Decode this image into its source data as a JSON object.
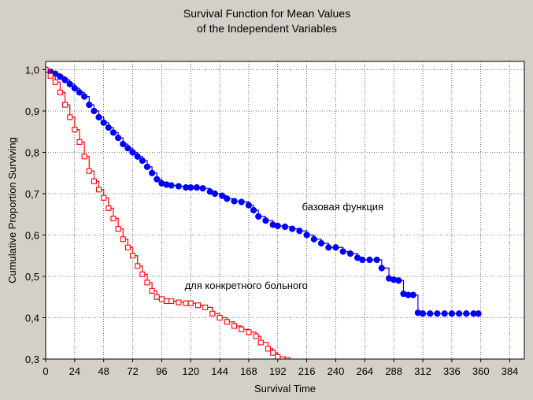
{
  "chart_data": {
    "type": "line",
    "title_lines": [
      "Survival Function for Mean Values",
      "of the Independent Variables"
    ],
    "xlabel": "Survival Time",
    "ylabel": "Cumulative Proportion Surviving",
    "xlim": [
      0,
      396
    ],
    "ylim": [
      0.3,
      1.02
    ],
    "x_ticks": [
      0,
      24,
      48,
      72,
      96,
      120,
      144,
      168,
      192,
      216,
      240,
      264,
      288,
      312,
      336,
      360,
      384
    ],
    "y_ticks": [
      {
        "v": 0.3,
        "label": "0,3"
      },
      {
        "v": 0.4,
        "label": "0,4"
      },
      {
        "v": 0.5,
        "label": "0,5"
      },
      {
        "v": 0.6,
        "label": "0,6"
      },
      {
        "v": 0.7,
        "label": "0,7"
      },
      {
        "v": 0.8,
        "label": "0,8"
      },
      {
        "v": 0.9,
        "label": "0,9"
      },
      {
        "v": 1.0,
        "label": "1,0"
      }
    ],
    "grid": true,
    "series": [
      {
        "name": "базовая функция",
        "color": "#0000ff",
        "marker": "filled-circle",
        "x": [
          0,
          4,
          8,
          12,
          16,
          20,
          24,
          28,
          32,
          36,
          40,
          44,
          48,
          52,
          56,
          60,
          64,
          68,
          72,
          76,
          80,
          84,
          88,
          92,
          96,
          100,
          104,
          110,
          116,
          120,
          125,
          130,
          136,
          140,
          146,
          150,
          156,
          162,
          168,
          172,
          176,
          182,
          188,
          192,
          198,
          204,
          210,
          216,
          222,
          228,
          234,
          240,
          246,
          252,
          258,
          262,
          268,
          274,
          278,
          284,
          288,
          292,
          296,
          300,
          304,
          308,
          312,
          318,
          324,
          330,
          336,
          342,
          348,
          354,
          358
        ],
        "y": [
          1.0,
          0.995,
          0.99,
          0.983,
          0.975,
          0.965,
          0.955,
          0.945,
          0.935,
          0.915,
          0.9,
          0.885,
          0.872,
          0.86,
          0.848,
          0.835,
          0.82,
          0.81,
          0.8,
          0.79,
          0.78,
          0.765,
          0.75,
          0.735,
          0.725,
          0.722,
          0.72,
          0.718,
          0.715,
          0.715,
          0.715,
          0.713,
          0.705,
          0.7,
          0.695,
          0.688,
          0.682,
          0.68,
          0.672,
          0.66,
          0.645,
          0.635,
          0.625,
          0.622,
          0.62,
          0.615,
          0.61,
          0.6,
          0.59,
          0.58,
          0.57,
          0.57,
          0.56,
          0.555,
          0.545,
          0.54,
          0.54,
          0.54,
          0.52,
          0.495,
          0.492,
          0.49,
          0.458,
          0.455,
          0.455,
          0.412,
          0.41,
          0.41,
          0.41,
          0.41,
          0.41,
          0.41,
          0.41,
          0.41,
          0.41
        ]
      },
      {
        "name": "для конкретного больного",
        "color": "#ff0000",
        "marker": "open-square",
        "x": [
          0,
          4,
          8,
          12,
          16,
          20,
          24,
          28,
          32,
          36,
          40,
          44,
          48,
          52,
          56,
          60,
          64,
          68,
          72,
          76,
          80,
          84,
          88,
          92,
          96,
          100,
          104,
          110,
          116,
          120,
          126,
          132,
          138,
          144,
          150,
          156,
          162,
          168,
          174,
          178,
          184,
          188,
          192,
          196,
          200
        ],
        "y": [
          1.0,
          0.985,
          0.97,
          0.945,
          0.915,
          0.885,
          0.855,
          0.825,
          0.79,
          0.755,
          0.73,
          0.71,
          0.69,
          0.665,
          0.64,
          0.615,
          0.59,
          0.57,
          0.55,
          0.525,
          0.505,
          0.485,
          0.465,
          0.45,
          0.445,
          0.44,
          0.44,
          0.437,
          0.435,
          0.435,
          0.43,
          0.425,
          0.41,
          0.4,
          0.39,
          0.38,
          0.372,
          0.365,
          0.355,
          0.34,
          0.325,
          0.315,
          0.305,
          0.3,
          0.298
        ]
      }
    ],
    "annotations": [
      {
        "text": "базовая функция",
        "x": 212,
        "y": 0.66
      },
      {
        "text": "для конкретного больного",
        "x": 115,
        "y": 0.47
      }
    ]
  }
}
